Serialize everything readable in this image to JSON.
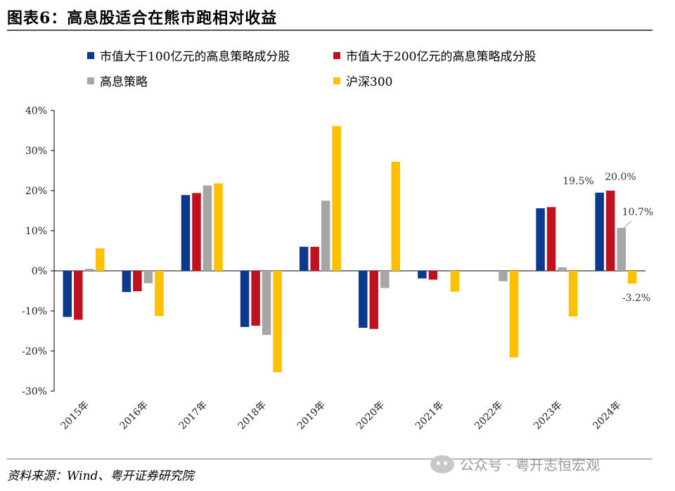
{
  "header": {
    "title": "图表6：高息股适合在熊市跑相对收益"
  },
  "footer": {
    "source": "资料来源：Wind、粤开证券研究院",
    "watermark": "公众号 · 粤开志恒宏观"
  },
  "colors": {
    "navy": "#0b3a8c",
    "red": "#c0111f",
    "gray": "#a6a6a6",
    "gold": "#ffc000"
  },
  "chart_data": {
    "type": "bar",
    "title": "高息股适合在熊市跑相对收益",
    "categories": [
      "2015年",
      "2016年",
      "2017年",
      "2018年",
      "2019年",
      "2020年",
      "2021年",
      "2022年",
      "2023年",
      "2024年"
    ],
    "series": [
      {
        "name": "市值大于100亿元的高息策略成分股",
        "color": "#0b3a8c",
        "values": [
          -11.5,
          -5.3,
          18.9,
          -14.0,
          6.0,
          -14.2,
          -1.9,
          0.0,
          15.6,
          19.5
        ]
      },
      {
        "name": "市值大于200亿元的高息策略成分股",
        "color": "#c0111f",
        "values": [
          -12.2,
          -5.1,
          19.4,
          -13.7,
          6.0,
          -14.5,
          -2.2,
          0.0,
          15.9,
          20.0
        ]
      },
      {
        "name": "高息策略",
        "color": "#a6a6a6",
        "values": [
          0.5,
          -3.1,
          21.3,
          -16.0,
          17.5,
          -4.3,
          0.0,
          -2.6,
          0.9,
          10.7
        ]
      },
      {
        "name": "沪深300",
        "color": "#ffc000",
        "values": [
          5.6,
          -11.3,
          21.8,
          -25.3,
          36.1,
          27.2,
          -5.2,
          -21.6,
          -11.4,
          -3.2
        ]
      }
    ],
    "yticks": [
      "-30%",
      "-20%",
      "-10%",
      "0%",
      "10%",
      "20%",
      "30%",
      "40%"
    ],
    "ylim": [
      -30,
      40
    ],
    "ylabel": "",
    "xlabel": "",
    "annotations": [
      {
        "text": "19.5%",
        "series": 0,
        "index": 9
      },
      {
        "text": "20.0%",
        "series": 1,
        "index": 9
      },
      {
        "text": "10.7%",
        "series": 2,
        "index": 9
      },
      {
        "text": "-3.2%",
        "series": 3,
        "index": 9
      }
    ]
  }
}
